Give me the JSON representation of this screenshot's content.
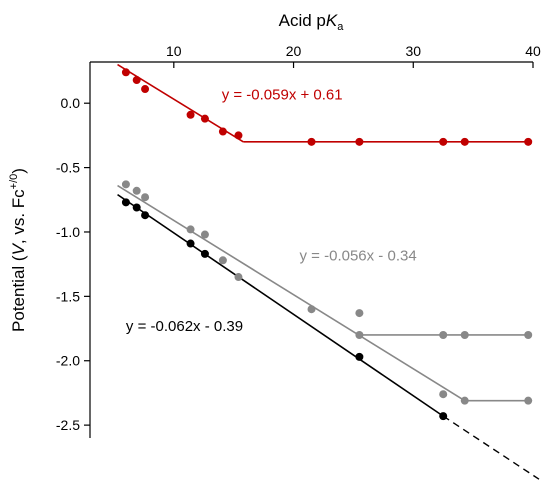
{
  "chart_data": {
    "type": "scatter",
    "xlabel_prefix": "Acid p",
    "xlabel_italic": "K",
    "xlabel_sub": "a",
    "ylabel_main": "Potential (",
    "ylabel_italic": "V",
    "ylabel_mid": ", vs. Fc",
    "ylabel_sup": "+/0",
    "ylabel_end": ")",
    "x_axis_position": "top",
    "xlim": [
      3,
      40
    ],
    "ylim": [
      -2.6,
      0.32
    ],
    "x_ticks": [
      10,
      20,
      30,
      40
    ],
    "y_ticks": [
      0.0,
      -0.5,
      -1.0,
      -1.5,
      -2.0,
      -2.5
    ],
    "y_tick_labels": [
      "0.0",
      "-0.5",
      "-1.0",
      "-1.5",
      "-2.0",
      "-2.5"
    ],
    "grid": false,
    "series": [
      {
        "color": "#c00000",
        "points": [
          {
            "x": 6.0,
            "y": 0.24
          },
          {
            "x": 6.9,
            "y": 0.18
          },
          {
            "x": 7.6,
            "y": 0.11
          },
          {
            "x": 11.4,
            "y": -0.09
          },
          {
            "x": 12.6,
            "y": -0.12
          },
          {
            "x": 14.1,
            "y": -0.22
          },
          {
            "x": 15.4,
            "y": -0.25
          },
          {
            "x": 21.5,
            "y": -0.3
          },
          {
            "x": 25.5,
            "y": -0.3
          },
          {
            "x": 32.5,
            "y": -0.3
          },
          {
            "x": 34.3,
            "y": -0.3
          },
          {
            "x": 39.6,
            "y": -0.3
          }
        ],
        "fit_lines": [
          {
            "x1": 5.3,
            "y1": 0.3,
            "x2": 15.8,
            "y2": -0.3
          },
          {
            "x1": 15.8,
            "y1": -0.3,
            "x2": 39.9,
            "y2": -0.3
          }
        ],
        "equation": "y = -0.059x + 0.61"
      },
      {
        "color": "#888888",
        "points": [
          {
            "x": 6.0,
            "y": -0.63
          },
          {
            "x": 6.9,
            "y": -0.68
          },
          {
            "x": 7.6,
            "y": -0.73
          },
          {
            "x": 11.4,
            "y": -0.98
          },
          {
            "x": 12.6,
            "y": -1.02
          },
          {
            "x": 14.1,
            "y": -1.22
          },
          {
            "x": 15.4,
            "y": -1.35
          },
          {
            "x": 21.5,
            "y": -1.6
          },
          {
            "x": 25.5,
            "y": -1.63
          },
          {
            "x": 25.5,
            "y": -1.8
          },
          {
            "x": 32.5,
            "y": -1.8
          },
          {
            "x": 34.3,
            "y": -1.8
          },
          {
            "x": 39.6,
            "y": -1.8
          },
          {
            "x": 32.5,
            "y": -2.26
          },
          {
            "x": 34.3,
            "y": -2.31
          },
          {
            "x": 39.6,
            "y": -2.31
          }
        ],
        "fit_lines": [
          {
            "x1": 5.3,
            "y1": -0.64,
            "x2": 34.3,
            "y2": -2.31
          },
          {
            "x1": 25.5,
            "y1": -1.8,
            "x2": 39.9,
            "y2": -1.8
          },
          {
            "x1": 34.3,
            "y1": -2.31,
            "x2": 39.9,
            "y2": -2.31
          }
        ],
        "equation": "y = -0.056x - 0.34"
      },
      {
        "color": "#000000",
        "points": [
          {
            "x": 6.0,
            "y": -0.77
          },
          {
            "x": 6.9,
            "y": -0.81
          },
          {
            "x": 7.6,
            "y": -0.87
          },
          {
            "x": 11.4,
            "y": -1.09
          },
          {
            "x": 12.6,
            "y": -1.17
          },
          {
            "x": 25.5,
            "y": -1.97
          },
          {
            "x": 32.5,
            "y": -2.43
          }
        ],
        "fit_lines": [
          {
            "x1": 5.3,
            "y1": -0.71,
            "x2": 32.5,
            "y2": -2.43
          }
        ],
        "dashed_lines": [
          {
            "x1": 32.5,
            "y1": -2.43,
            "x2": 40.5,
            "y2": -2.92
          }
        ],
        "equation": "y = -0.062x - 0.39"
      }
    ],
    "annotations": [
      {
        "series": 0,
        "x": 14.0,
        "y": 0.03,
        "anchor": "start"
      },
      {
        "series": 1,
        "x": 20.5,
        "y": -1.22,
        "anchor": "start"
      },
      {
        "series": 2,
        "x": 6.0,
        "y": -1.77,
        "anchor": "start"
      }
    ]
  }
}
